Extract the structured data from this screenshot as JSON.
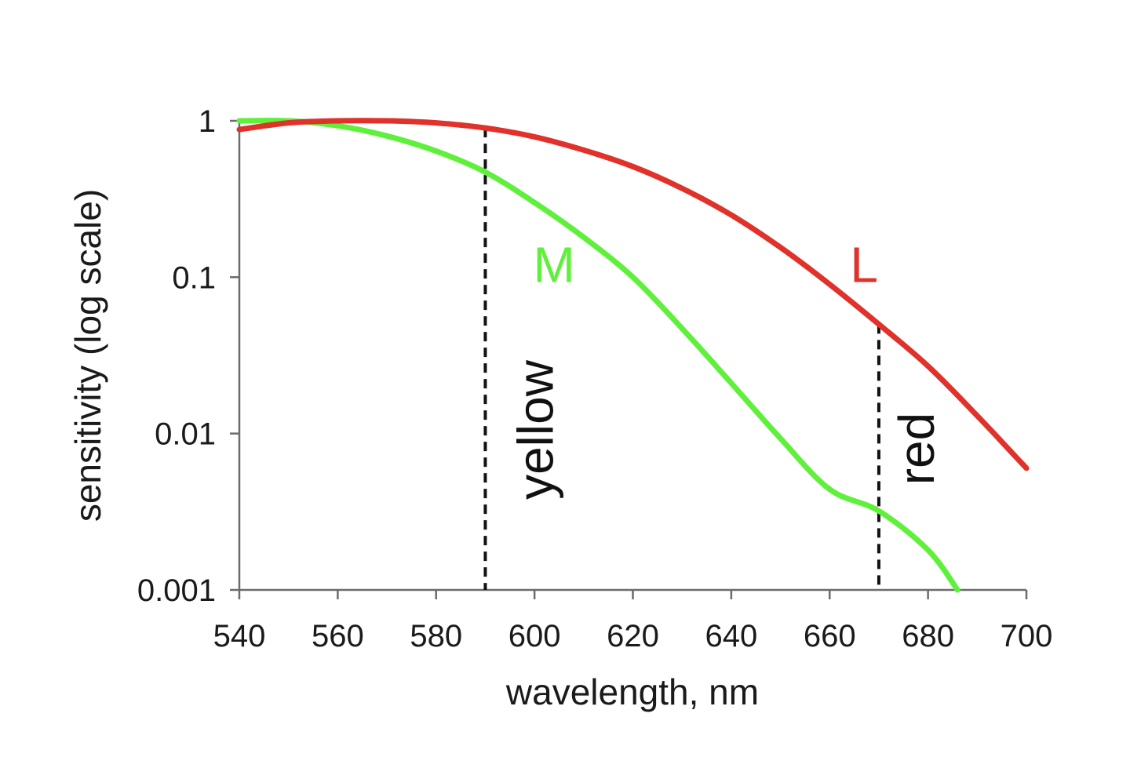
{
  "chart_data": {
    "type": "line",
    "title": "",
    "xlabel": "wavelength, nm",
    "ylabel": "sensitivity (log scale)",
    "xlim": [
      540,
      700
    ],
    "ylim": [
      0.001,
      1
    ],
    "yscale": "log",
    "grid": false,
    "legend": "none",
    "x_ticks": [
      "540",
      "560",
      "580",
      "600",
      "620",
      "640",
      "660",
      "680",
      "700"
    ],
    "y_ticks": [
      "0.001",
      "0.01",
      "0.1",
      "1"
    ],
    "series": [
      {
        "name": "L",
        "color": "#e0312a",
        "x": [
          540,
          550,
          560,
          570,
          580,
          590,
          600,
          610,
          620,
          630,
          640,
          650,
          660,
          670,
          680,
          690,
          700
        ],
        "y": [
          0.88,
          0.97,
          1.0,
          1.0,
          0.97,
          0.9,
          0.79,
          0.65,
          0.51,
          0.37,
          0.25,
          0.155,
          0.09,
          0.05,
          0.027,
          0.013,
          0.006
        ]
      },
      {
        "name": "M",
        "color": "#5ef03a",
        "x": [
          540,
          550,
          560,
          570,
          580,
          590,
          600,
          610,
          620,
          630,
          640,
          650,
          660,
          670,
          680,
          686
        ],
        "y": [
          1.0,
          1.0,
          0.93,
          0.8,
          0.64,
          0.47,
          0.3,
          0.18,
          0.1,
          0.047,
          0.021,
          0.0093,
          0.0044,
          0.0032,
          0.0018,
          0.001
        ]
      }
    ],
    "reference_lines": [
      {
        "x": 590,
        "label": "yellow"
      },
      {
        "x": 670,
        "label": "red"
      }
    ],
    "annotations": [
      {
        "text": "M",
        "color": "#5ef03a",
        "x": 604,
        "y": 0.1
      },
      {
        "text": "L",
        "color": "#e0312a",
        "x": 667,
        "y": 0.1
      }
    ]
  }
}
